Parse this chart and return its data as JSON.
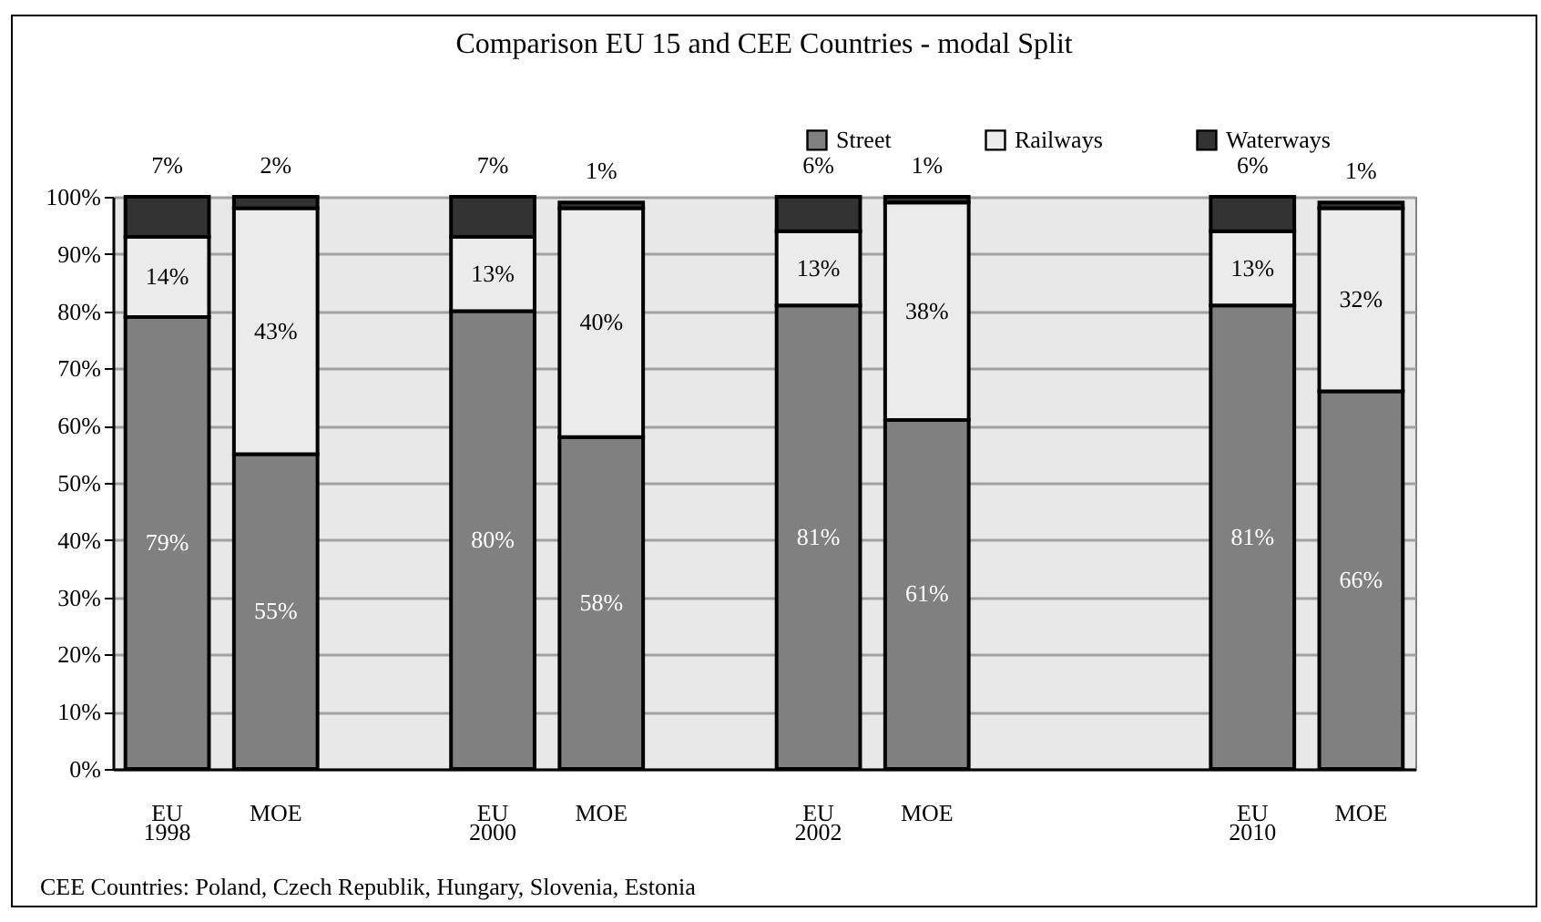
{
  "chart_data": {
    "type": "bar",
    "title": "Comparison EU 15 and CEE  Countries - modal Split",
    "categories": [
      "EU",
      "MOE",
      null,
      "EU",
      "MOE",
      null,
      "EU",
      "MOE",
      null,
      null,
      "EU",
      "MOE"
    ],
    "stacked": true,
    "series": [
      {
        "name": "Street",
        "color": "#808080",
        "values": [
          79,
          55,
          null,
          80,
          58,
          null,
          81,
          61,
          null,
          null,
          81,
          66
        ],
        "value_labels": [
          "79%",
          "55%",
          null,
          "80%",
          "58%",
          null,
          "81%",
          "61%",
          null,
          null,
          "81%",
          "66%"
        ]
      },
      {
        "name": "Railways",
        "color": "#ebebeb",
        "values": [
          14,
          43,
          null,
          13,
          40,
          null,
          13,
          38,
          null,
          null,
          13,
          32
        ],
        "value_labels": [
          "14%",
          "43%",
          null,
          "13%",
          "40%",
          null,
          "13%",
          "38%",
          null,
          null,
          "13%",
          "32%"
        ]
      },
      {
        "name": "Waterways",
        "color": "#333333",
        "values": [
          7,
          2,
          null,
          7,
          1,
          null,
          6,
          1,
          null,
          null,
          6,
          1
        ],
        "value_labels": [
          "7%",
          "2%",
          null,
          "7%",
          "1%",
          null,
          "6%",
          "1%",
          null,
          null,
          "6%",
          "1%"
        ]
      }
    ],
    "ylim": [
      0,
      100
    ],
    "yticks": [
      {
        "value": 0,
        "label": "0%"
      },
      {
        "value": 10,
        "label": "10%"
      },
      {
        "value": 20,
        "label": "20%"
      },
      {
        "value": 30,
        "label": "30%"
      },
      {
        "value": 40,
        "label": "40%"
      },
      {
        "value": 50,
        "label": "50%"
      },
      {
        "value": 60,
        "label": "60%"
      },
      {
        "value": 70,
        "label": "70%"
      },
      {
        "value": 80,
        "label": "80%"
      },
      {
        "value": 90,
        "label": "90%"
      },
      {
        "value": 100,
        "label": "100%"
      }
    ],
    "grid": "y",
    "legend": "top right",
    "annotations": [
      "1998",
      "2000",
      "2002",
      "2010",
      "CEE Countries: Poland, Czech Republik, Hungary, Slovenia, Estonia"
    ]
  }
}
